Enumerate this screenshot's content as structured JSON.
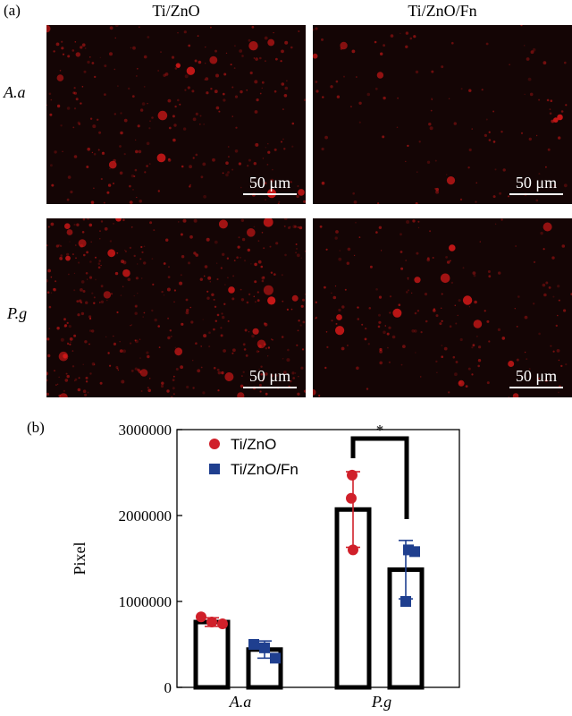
{
  "figure": {
    "panel_a_label": "(a)",
    "panel_b_label": "(b)",
    "columns": [
      "Ti/ZnO",
      "Ti/ZnO/Fn"
    ],
    "rows": [
      "A.a",
      "P.g"
    ],
    "scale_bar_label": "50 μm",
    "image_background_color": "#140505",
    "stain_color": "#d01818"
  },
  "chart_data": {
    "type": "bar",
    "categories": [
      "A.a",
      "P.g"
    ],
    "ylabel": "Pixel",
    "xlabel": "",
    "ylim": [
      0,
      3000000
    ],
    "yticks": [
      0,
      1000000,
      2000000,
      3000000
    ],
    "ytick_labels": [
      "0",
      "1000000",
      "2000000",
      "3000000"
    ],
    "series": [
      {
        "name": "Ti/ZnO",
        "color": "#d0202a",
        "marker": "circle",
        "values": [
          760000,
          2070000
        ],
        "errors": [
          50000,
          440000
        ],
        "points": [
          [
            820000,
            760000,
            740000
          ],
          [
            2470000,
            2200000,
            1600000
          ]
        ]
      },
      {
        "name": "Ti/ZnO/Fn",
        "color": "#1f3f8f",
        "marker": "square",
        "values": [
          440000,
          1370000
        ],
        "errors": [
          100000,
          340000
        ],
        "points": [
          [
            500000,
            460000,
            340000
          ],
          [
            1600000,
            1580000,
            1000000
          ]
        ]
      }
    ],
    "significance": [
      {
        "category": "P.g",
        "label": "*"
      }
    ],
    "legend_position": "top-left"
  }
}
